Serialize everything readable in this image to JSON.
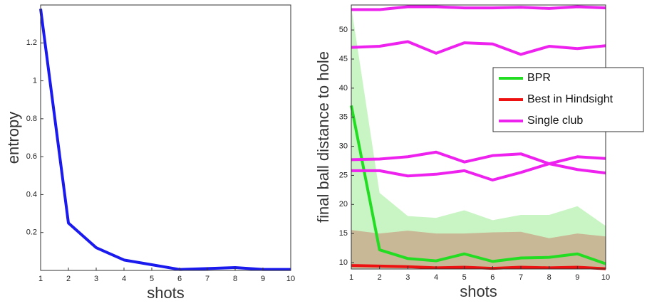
{
  "chart_data": [
    {
      "type": "line",
      "x_label": "shots",
      "y_label": "entropy",
      "x": [
        1,
        2,
        3,
        4,
        5,
        6,
        7,
        8,
        9,
        10
      ],
      "xlim": [
        1,
        10
      ],
      "xticks": [
        1,
        2,
        3,
        4,
        5,
        6,
        7,
        8,
        9,
        10
      ],
      "ylim": [
        0,
        1.4
      ],
      "yticks": [
        0.2,
        0.4,
        0.6,
        0.8,
        1,
        1.2
      ],
      "series": [
        {
          "color": "#1a1aee",
          "values": [
            1.38,
            0.25,
            0.12,
            0.055,
            0.03,
            0.005,
            0.01,
            0.015,
            0.005,
            0.005
          ]
        }
      ]
    },
    {
      "type": "line",
      "x_label": "shots",
      "y_label": "final ball distance to hole",
      "x": [
        1,
        2,
        3,
        4,
        5,
        6,
        7,
        8,
        9,
        10
      ],
      "xlim": [
        1,
        10
      ],
      "xticks": [
        1,
        2,
        3,
        4,
        5,
        6,
        7,
        8,
        9,
        10
      ],
      "ylim": [
        8.9,
        54.3
      ],
      "yticks": [
        10,
        15,
        20,
        25,
        30,
        35,
        40,
        45,
        50
      ],
      "legend": "right",
      "bands": [
        {
          "color": "#c9f5c4",
          "upper": [
            54,
            22,
            18,
            17.7,
            19,
            17.3,
            18.2,
            18.2,
            19.7,
            16.3
          ],
          "lower": [
            9,
            9,
            9,
            9,
            9,
            9,
            9,
            9,
            9,
            9
          ]
        },
        {
          "color": "#c9b896",
          "upper": [
            15.6,
            15,
            15.5,
            15,
            15,
            15.2,
            15.3,
            14.2,
            15,
            14.5
          ],
          "lower": [
            9,
            9,
            9,
            9,
            9,
            9,
            9,
            9,
            9,
            9
          ]
        }
      ],
      "series": [
        {
          "name": "BPR",
          "color": "#22dd22",
          "values": [
            37,
            12.2,
            10.7,
            10.3,
            11.5,
            10.2,
            10.8,
            10.9,
            11.5,
            9.8
          ]
        },
        {
          "name": "Best in Hindsight",
          "color": "#ee1111",
          "values": [
            9.5,
            9.4,
            9.3,
            9.1,
            9.2,
            9.0,
            9.2,
            9.1,
            9.2,
            8.95
          ]
        },
        {
          "name": "Single club",
          "color": "#ee22ee",
          "values": [
            53.5,
            53.5,
            54,
            54,
            53.8,
            53.8,
            53.9,
            53.7,
            54,
            53.8
          ]
        },
        {
          "color": "#ee22ee",
          "values": [
            47,
            47.2,
            48,
            46,
            47.8,
            47.6,
            45.8,
            47.2,
            46.8,
            47.3
          ]
        },
        {
          "color": "#ee22ee",
          "values": [
            27.7,
            27.8,
            28.2,
            29,
            27.3,
            28.4,
            28.7,
            27,
            28.2,
            27.9
          ]
        },
        {
          "color": "#ee22ee",
          "values": [
            25.8,
            25.8,
            24.9,
            25.2,
            25.8,
            24.2,
            25.5,
            27,
            26,
            25.4
          ]
        }
      ]
    }
  ]
}
